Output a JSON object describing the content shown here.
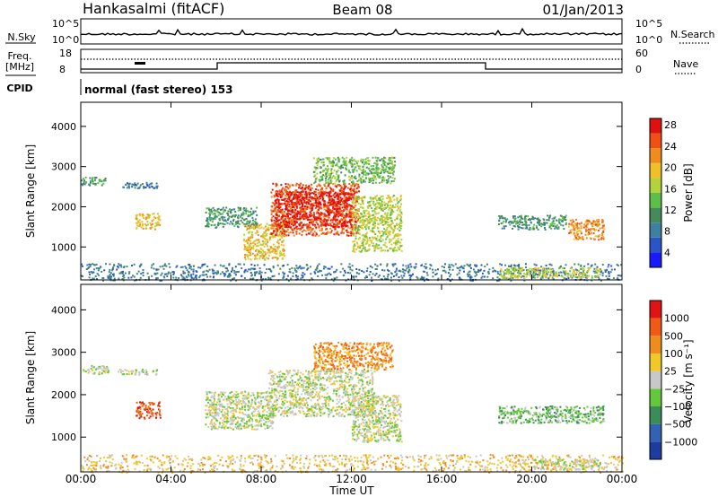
{
  "header": {
    "station": "Hankasalmi (fitACF)",
    "beam": "Beam 08",
    "date": "01/Jan/2013"
  },
  "noise_panel": {
    "left_label": "N.Sky",
    "right_label": "N.Search",
    "left_ticks": [
      "10^5",
      "10^0"
    ],
    "right_ticks": [
      "10^5",
      "10^0"
    ]
  },
  "freq_panel": {
    "left_label_line1": "Freq.",
    "left_label_line2": "[MHz]",
    "left_ticks": [
      "18",
      "8"
    ],
    "right_label": "Nave",
    "right_ticks": [
      "60",
      "0"
    ],
    "cpid_label": "CPID",
    "cpid_text": "normal (fast stereo) 153"
  },
  "chart_data": [
    {
      "type": "heatmap",
      "name": "power",
      "ylabel": "Slant Range [km]",
      "ylim": [
        180,
        4600
      ],
      "y_ticks": [
        1000,
        2000,
        3000,
        4000
      ],
      "x_ticks": [
        "00:00",
        "04:00",
        "08:00",
        "12:00",
        "16:00",
        "20:00",
        "00:00"
      ],
      "xlim_hours": [
        0,
        24
      ],
      "colorbar": {
        "label": "Power [dB]",
        "ticks": [
          "4",
          "8",
          "12",
          "16",
          "20",
          "24",
          "28"
        ],
        "colors": [
          "#1a1aff",
          "#2b55c6",
          "#3f7fa0",
          "#468a5c",
          "#5bbf4a",
          "#b4d23c",
          "#f0c028",
          "#f08c1e",
          "#f05014",
          "#e01010"
        ]
      },
      "regions": [
        {
          "x_start": 0.0,
          "x_end": 1.1,
          "y_low": 2550,
          "y_high": 2750,
          "level": 3
        },
        {
          "x_start": 1.6,
          "x_end": 3.4,
          "y_low": 2480,
          "y_high": 2620,
          "level": 2
        },
        {
          "x_start": 2.4,
          "x_end": 3.5,
          "y_low": 1450,
          "y_high": 1850,
          "level": 6
        },
        {
          "x_start": 5.5,
          "x_end": 7.8,
          "y_low": 1500,
          "y_high": 2000,
          "level": 3
        },
        {
          "x_start": 7.2,
          "x_end": 9.0,
          "y_low": 700,
          "y_high": 1600,
          "level": 6
        },
        {
          "x_start": 8.4,
          "x_end": 12.3,
          "y_low": 1300,
          "y_high": 2600,
          "level": 8
        },
        {
          "x_start": 8.6,
          "x_end": 12.0,
          "y_low": 1500,
          "y_high": 2400,
          "level": 9
        },
        {
          "x_start": 12.0,
          "x_end": 14.2,
          "y_low": 900,
          "y_high": 2300,
          "level": 5
        },
        {
          "x_start": 10.3,
          "x_end": 13.9,
          "y_low": 2600,
          "y_high": 3250,
          "level": 4
        },
        {
          "x_start": 18.5,
          "x_end": 21.5,
          "y_low": 1450,
          "y_high": 1800,
          "level": 3
        },
        {
          "x_start": 21.6,
          "x_end": 23.2,
          "y_low": 1200,
          "y_high": 1700,
          "level": 7
        },
        {
          "x_start": 0.0,
          "x_end": 24.0,
          "y_low": 180,
          "y_high": 600,
          "level": 2
        },
        {
          "x_start": 18.5,
          "x_end": 23.0,
          "y_low": 250,
          "y_high": 500,
          "level": 5
        }
      ]
    },
    {
      "type": "heatmap",
      "name": "velocity",
      "ylabel": "Slant Range [km]",
      "xlabel": "Time UT",
      "ylim": [
        180,
        4600
      ],
      "y_ticks": [
        1000,
        2000,
        3000,
        4000
      ],
      "x_ticks": [
        "00:00",
        "04:00",
        "08:00",
        "12:00",
        "16:00",
        "20:00",
        "00:00"
      ],
      "xlim_hours": [
        0,
        24
      ],
      "colorbar": {
        "label": "Velocity [m s⁻¹]",
        "ticks": [
          "1000",
          "500",
          "100",
          "25",
          "−25",
          "−100",
          "−500",
          "−1000"
        ],
        "colors": [
          "#1e3ca0",
          "#3262b4",
          "#3c8c5a",
          "#64c83c",
          "#c8c8c8",
          "#f0c828",
          "#f08c1e",
          "#f05a14",
          "#e01414"
        ]
      },
      "regions": [
        {
          "x_start": 0.0,
          "x_end": 1.2,
          "y_low": 2500,
          "y_high": 2700,
          "level": 4
        },
        {
          "x_start": 1.6,
          "x_end": 3.4,
          "y_low": 2480,
          "y_high": 2620,
          "level": 4
        },
        {
          "x_start": 2.4,
          "x_end": 3.5,
          "y_low": 1450,
          "y_high": 1850,
          "level": 7
        },
        {
          "x_start": 5.5,
          "x_end": 8.5,
          "y_low": 1200,
          "y_high": 2100,
          "level": 4
        },
        {
          "x_start": 8.3,
          "x_end": 13.0,
          "y_low": 1500,
          "y_high": 2600,
          "level": 4
        },
        {
          "x_start": 10.3,
          "x_end": 13.8,
          "y_low": 2600,
          "y_high": 3250,
          "level": 6
        },
        {
          "x_start": 12.0,
          "x_end": 14.2,
          "y_low": 900,
          "y_high": 2000,
          "level": 4
        },
        {
          "x_start": 18.5,
          "x_end": 23.2,
          "y_low": 1350,
          "y_high": 1750,
          "level": 3
        },
        {
          "x_start": 0.0,
          "x_end": 24.0,
          "y_low": 180,
          "y_high": 600,
          "level": 5
        },
        {
          "x_start": 20.0,
          "x_end": 23.0,
          "y_low": 250,
          "y_high": 500,
          "level": 4
        }
      ]
    }
  ]
}
